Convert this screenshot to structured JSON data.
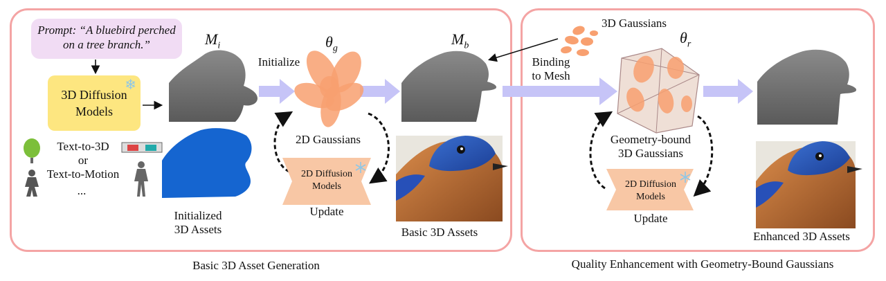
{
  "colors": {
    "panel_border": "#f4a4a4",
    "prompt_bg": "#f1dcf4",
    "diffusion3d_bg": "#fde680",
    "gaussian_orange": "#f8a070",
    "flow_arrow": "#c6c4f7",
    "mask_blue": "#1565d0",
    "mesh_gray": "#6f6f6f",
    "bowtie": "#f8c7a5"
  },
  "left_panel": {
    "prompt_line1": "Prompt: “A bluebird perched",
    "prompt_line2": "on a tree branch.”",
    "diffusion3d_line1": "3D Diffusion",
    "diffusion3d_line2": "Models",
    "input_types": [
      "Text-to-3D",
      "or",
      "Text-to-Motion",
      "..."
    ],
    "mesh_init_symbol": "M",
    "mesh_init_sub": "i",
    "initialize_label": "Initialize",
    "theta_g_symbol": "θ",
    "theta_g_sub": "g",
    "mesh_basic_symbol": "M",
    "mesh_basic_sub": "b",
    "gaussians_2d_label": "2D Gaussians",
    "diffusion2d_line1": "2D Diffusion",
    "diffusion2d_line2": "Models",
    "update_label": "Update",
    "initialized_line1": "Initialized",
    "initialized_line2": "3D Assets",
    "basic_assets_label": "Basic 3D Assets",
    "caption": "Basic 3D Asset Generation"
  },
  "right_panel": {
    "gaussians_3d_label": "3D Gaussians",
    "binding_line1": "Binding",
    "binding_line2": "to Mesh",
    "theta_r_symbol": "θ",
    "theta_r_sub": "r",
    "geometry_bound_line1": "Geometry-bound",
    "geometry_bound_line2": "3D Gaussians",
    "diffusion2d_line1": "2D Diffusion",
    "diffusion2d_line2": "Models",
    "update_label": "Update",
    "enhanced_assets_label": "Enhanced 3D Assets",
    "caption": "Quality Enhancement with Geometry-Bound Gaussians"
  }
}
